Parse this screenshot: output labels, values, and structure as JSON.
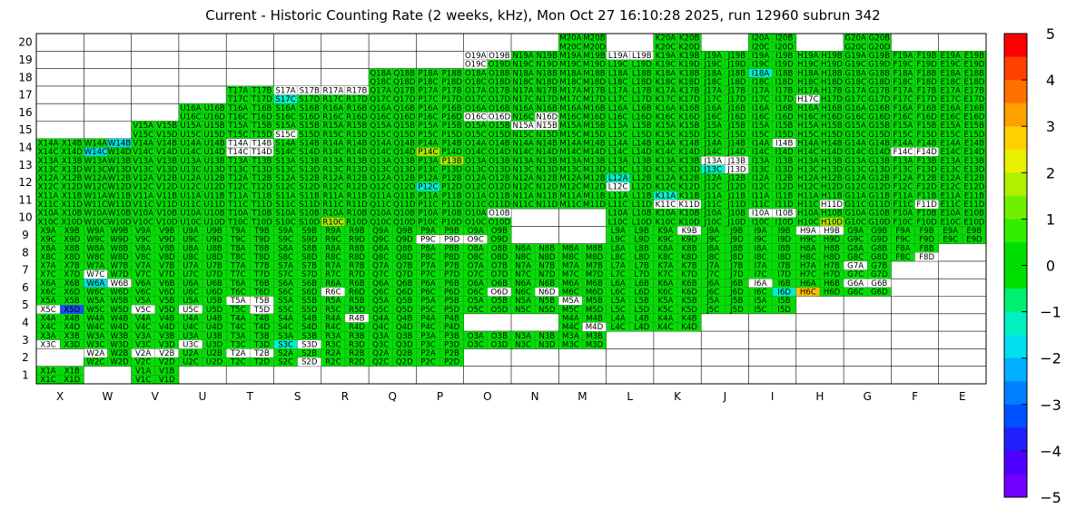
{
  "title": "Current - Historic Counting Rate (2 weeks, kHz), Mon Oct 27 16:10:28 2025, run 12960 subrun 342",
  "chart_data": {
    "type": "heatmap",
    "title": "Current - Historic Counting Rate (2 weeks, kHz), Mon Oct 27 16:10:28 2025, run 12960 subrun 342",
    "xlabel": "",
    "ylabel": "",
    "columns": [
      "X",
      "W",
      "V",
      "U",
      "T",
      "S",
      "R",
      "Q",
      "P",
      "O",
      "N",
      "M",
      "L",
      "K",
      "J",
      "I",
      "H",
      "G",
      "F",
      "E"
    ],
    "rows": [
      20,
      19,
      18,
      17,
      16,
      15,
      14,
      13,
      12,
      11,
      10,
      9,
      8,
      7,
      6,
      5,
      4,
      3,
      2,
      1
    ],
    "colorbar": {
      "min": -5,
      "max": 5,
      "ticks": [
        -5,
        -4,
        -3,
        -2,
        -1,
        0,
        1,
        2,
        3,
        4,
        5
      ]
    },
    "colors": {
      "green": "#00e000",
      "white": "#ffffff",
      "blue": "#1450ff",
      "cyan": "#00e0e0",
      "lightcyan": "#00f0c8",
      "yellowgreen": "#a8e600",
      "orange": "#ffc000"
    },
    "cells": [
      {
        "col": "M",
        "row": 20,
        "a": "M20A",
        "b": "M20B",
        "ca": "cyan",
        "cb": "green"
      },
      {
        "col": "M",
        "row": 20,
        "a": "M20C",
        "b": "M20D",
        "ca": "green",
        "cb": "green",
        "half": "bottom"
      },
      {
        "col": "K",
        "row": 20,
        "a": "K20A",
        "b": "K20B",
        "ca": "green",
        "cb": "green"
      },
      {
        "col": "K",
        "row": 20,
        "a": "K20C",
        "b": "K20D",
        "ca": "green",
        "cb": "green",
        "half": "bottom"
      },
      {
        "col": "I",
        "row": 20,
        "a": "I20A",
        "b": "I20B",
        "ca": "green",
        "cb": "green"
      },
      {
        "col": "I",
        "row": 20,
        "a": "I20C",
        "b": "I20D",
        "ca": "green",
        "cb": "green",
        "half": "bottom"
      },
      {
        "col": "G",
        "row": 20,
        "a": "G20A",
        "b": "G20B",
        "ca": "green",
        "cb": "green"
      },
      {
        "col": "G",
        "row": 20,
        "a": "G20C",
        "b": "G20D",
        "ca": "white",
        "cb": "green",
        "half": "bottom"
      }
    ],
    "white_cells": [
      "O19A",
      "O19B",
      "O19C",
      "L19A",
      "L19B",
      "S17A",
      "S17B",
      "R17A",
      "R17B",
      "T14A",
      "T14B",
      "T14C",
      "T14D",
      "S15C",
      "O16C",
      "O16D",
      "N16D",
      "N15A",
      "N15B",
      "K11C",
      "K11D",
      "I10A",
      "I10B",
      "H9A",
      "H9B",
      "L12C",
      "O10B",
      "K9B",
      "N6D",
      "M5A",
      "I6A",
      "R6C",
      "V5C",
      "U5C",
      "T5A",
      "T5B",
      "T5D",
      "X5C",
      "S3D",
      "R4B",
      "W2A",
      "V2A",
      "V2B",
      "T2A",
      "T2B",
      "S2D",
      "W7C",
      "W6B",
      "X3C",
      "U3C",
      "M4D",
      "J13A",
      "J13B",
      "J13D",
      "H17C",
      "G6A",
      "G6B",
      "G7A",
      "F8D",
      "F11D",
      "F14C",
      "F14D",
      "O6D",
      "P9C",
      "P9D",
      "O9C",
      "H11D",
      "I14B"
    ],
    "special_cells": {
      "X5D": "blue",
      "W14B": "cyan",
      "W14C": "cyan",
      "W6A": "cyan",
      "S17C": "lightcyan",
      "S3C": "lightcyan",
      "J13C": "lightcyan",
      "P12C": "lightcyan",
      "I18A": "lightcyan",
      "L12A": "lightcyan",
      "P13B": "yellowgreen",
      "R10C": "yellowgreen",
      "P14C": "yellowgreen",
      "H10D": "yellowgreen",
      "H6C": "orange",
      "K11A": "lightcyan",
      "I6D": "lightcyan",
      "M13B": "green"
    }
  }
}
